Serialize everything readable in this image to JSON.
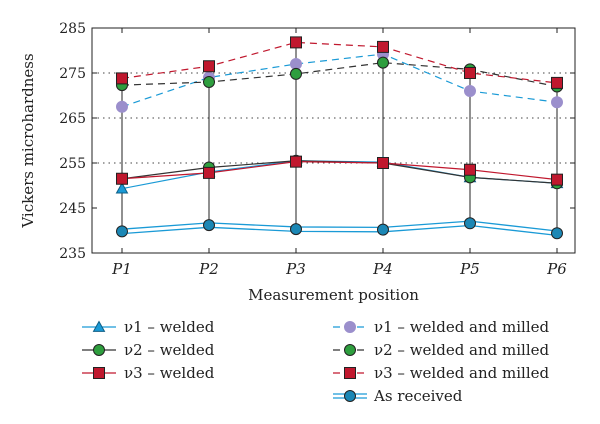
{
  "chart_data": {
    "type": "line",
    "categories": [
      "P1",
      "P2",
      "P3",
      "P4",
      "P5",
      "P6"
    ],
    "xlabel": "Measurement position",
    "ylabel": "Vickers microhardness",
    "ylim": [
      235,
      285
    ],
    "yticks": [
      235,
      245,
      255,
      265,
      275,
      285
    ],
    "grid": "dotted horizontal at 255, 265, 275",
    "legend_position": "below",
    "series": [
      {
        "name": "ν1 – welded",
        "values": [
          249.3,
          253.0,
          255.5,
          255.2,
          251.8,
          250.5
        ],
        "color": "#1a9ad6",
        "marker": "triangle",
        "line": "solid",
        "fill": "#1a9ad6"
      },
      {
        "name": "ν2 – welded",
        "values": [
          251.5,
          254.0,
          255.5,
          255.0,
          251.8,
          250.5
        ],
        "color": "#333333",
        "marker": "circle",
        "line": "solid",
        "fill": "#2e9e3e"
      },
      {
        "name": "ν3 – welded",
        "values": [
          251.5,
          252.8,
          255.3,
          255.0,
          253.5,
          251.3
        ],
        "color": "#c0182e",
        "marker": "square",
        "line": "solid",
        "fill": "#c0182e"
      },
      {
        "name": "ν1 – welded and  milled",
        "values": [
          267.5,
          274.0,
          277.0,
          279.2,
          271.0,
          268.5
        ],
        "color": "#1a9ad6",
        "marker": "circle",
        "line": "dashed",
        "fill": "#9b8fcc"
      },
      {
        "name": "ν2 – welded and  milled",
        "values": [
          272.3,
          273.0,
          274.8,
          277.3,
          275.8,
          272.0
        ],
        "color": "#333333",
        "marker": "circle",
        "line": "dashed",
        "fill": "#2e9e3e"
      },
      {
        "name": "ν3 – welded and  milled",
        "values": [
          273.8,
          276.5,
          281.8,
          280.8,
          275.0,
          272.8
        ],
        "color": "#c0182e",
        "marker": "square",
        "line": "dashed",
        "fill": "#c0182e"
      },
      {
        "name": "As received",
        "values": [
          239.8,
          241.2,
          240.3,
          240.2,
          241.6,
          239.4
        ],
        "color": "#1a9ad6",
        "marker": "circle",
        "line": "double",
        "fill": "#1b87b5"
      }
    ]
  }
}
